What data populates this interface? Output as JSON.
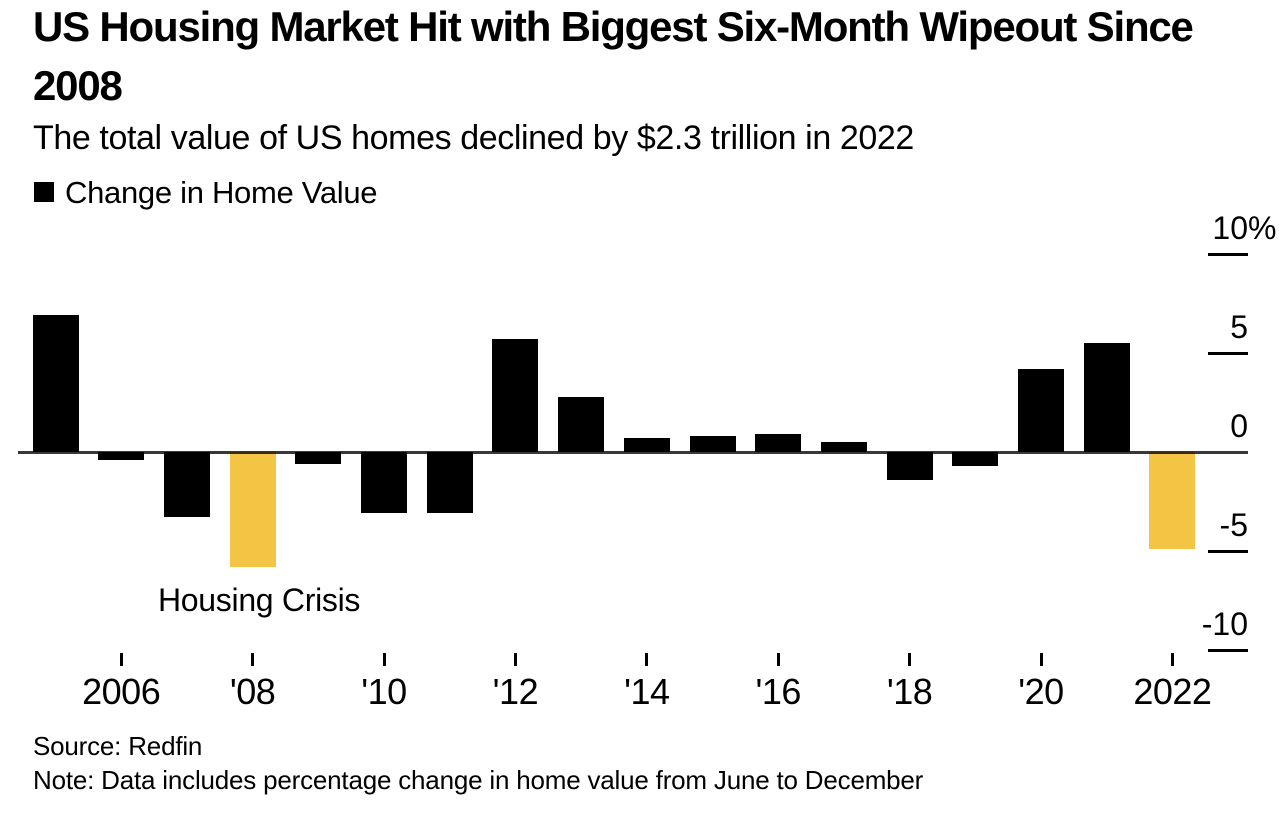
{
  "header": {
    "title_line1": "US Housing Market Hit with Biggest Six-Month Wipeout Since",
    "title_line2": "2008",
    "subtitle": "The total value of US homes declined by $2.3 trillion in 2022"
  },
  "legend": {
    "label": "Change in Home Value",
    "swatch_color": "#000000"
  },
  "chart_data": {
    "type": "bar",
    "series_name": "Change in Home Value",
    "unit": "%",
    "points": [
      {
        "year": 2005,
        "value": 6.9,
        "highlight": false
      },
      {
        "year": 2006,
        "value": -0.4,
        "highlight": false
      },
      {
        "year": 2007,
        "value": -3.3,
        "highlight": false
      },
      {
        "year": 2008,
        "value": -5.8,
        "highlight": true
      },
      {
        "year": 2009,
        "value": -0.6,
        "highlight": false
      },
      {
        "year": 2010,
        "value": -3.1,
        "highlight": false
      },
      {
        "year": 2011,
        "value": -3.1,
        "highlight": false
      },
      {
        "year": 2012,
        "value": 5.7,
        "highlight": false
      },
      {
        "year": 2013,
        "value": 2.8,
        "highlight": false
      },
      {
        "year": 2014,
        "value": 0.7,
        "highlight": false
      },
      {
        "year": 2015,
        "value": 0.8,
        "highlight": false
      },
      {
        "year": 2016,
        "value": 0.9,
        "highlight": false
      },
      {
        "year": 2017,
        "value": 0.5,
        "highlight": false
      },
      {
        "year": 2018,
        "value": -1.4,
        "highlight": false
      },
      {
        "year": 2019,
        "value": -0.7,
        "highlight": false
      },
      {
        "year": 2020,
        "value": 4.2,
        "highlight": false
      },
      {
        "year": 2021,
        "value": 5.5,
        "highlight": false
      },
      {
        "year": 2022,
        "value": -4.9,
        "highlight": true
      }
    ],
    "colors": {
      "bar": "#000000",
      "highlight": "#F4C445"
    },
    "y_axis": {
      "ticks": [
        10,
        5,
        0,
        -5,
        -10
      ],
      "tick_labels": [
        "10",
        "5",
        "0",
        "-5",
        "-10"
      ],
      "unit": "%",
      "range": [
        -10,
        10
      ],
      "grid": false
    },
    "x_axis": {
      "ticks": [
        {
          "year": 2006,
          "label": "2006"
        },
        {
          "year": 2008,
          "label": "'08"
        },
        {
          "year": 2010,
          "label": "'10"
        },
        {
          "year": 2012,
          "label": "'12"
        },
        {
          "year": 2014,
          "label": "'14"
        },
        {
          "year": 2016,
          "label": "'16"
        },
        {
          "year": 2018,
          "label": "'18"
        },
        {
          "year": 2020,
          "label": "'20"
        },
        {
          "year": 2022,
          "label": "2022"
        }
      ]
    },
    "annotation": {
      "text": "Housing Crisis",
      "year": 2008
    }
  },
  "footer": {
    "source": "Source: Redfin",
    "note": "Note: Data includes percentage change in home value from June to December"
  }
}
